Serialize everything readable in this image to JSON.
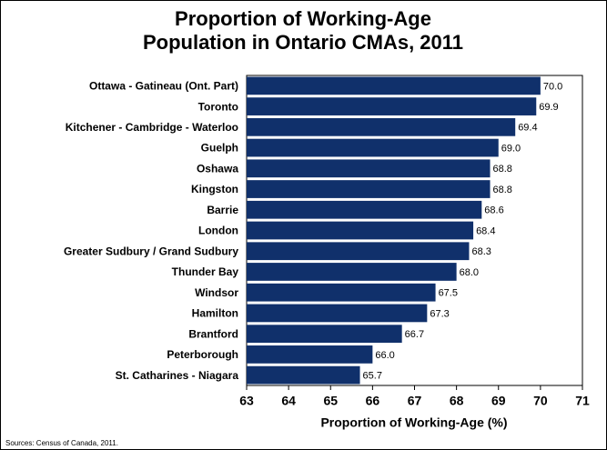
{
  "chart_data": {
    "type": "bar",
    "orientation": "horizontal",
    "title": "Proportion of Working-Age Population in Ontario CMAs, 2011",
    "categories": [
      "Ottawa - Gatineau (Ont. Part)",
      "Toronto",
      "Kitchener - Cambridge - Waterloo",
      "Guelph",
      "Oshawa",
      "Kingston",
      "Barrie",
      "London",
      "Greater Sudbury / Grand Sudbury",
      "Thunder Bay",
      "Windsor",
      "Hamilton",
      "Brantford",
      "Peterborough",
      "St. Catharines - Niagara"
    ],
    "values": [
      70.0,
      69.9,
      69.4,
      69.0,
      68.8,
      68.8,
      68.6,
      68.4,
      68.3,
      68.0,
      67.5,
      67.3,
      66.7,
      66.0,
      65.7
    ],
    "value_labels": [
      "70.0",
      "69.9",
      "69.4",
      "69.0",
      "68.8",
      "68.8",
      "68.6",
      "68.4",
      "68.3",
      "68.0",
      "67.5",
      "67.3",
      "66.7",
      "66.0",
      "65.7"
    ],
    "color": "#10306b",
    "xlim": [
      63,
      71
    ],
    "xticks": [
      63,
      64,
      65,
      66,
      67,
      68,
      69,
      70,
      71
    ],
    "x_label": "Proportion of Working-Age (%)",
    "source": "Sources: Census of Canada, 2011."
  }
}
